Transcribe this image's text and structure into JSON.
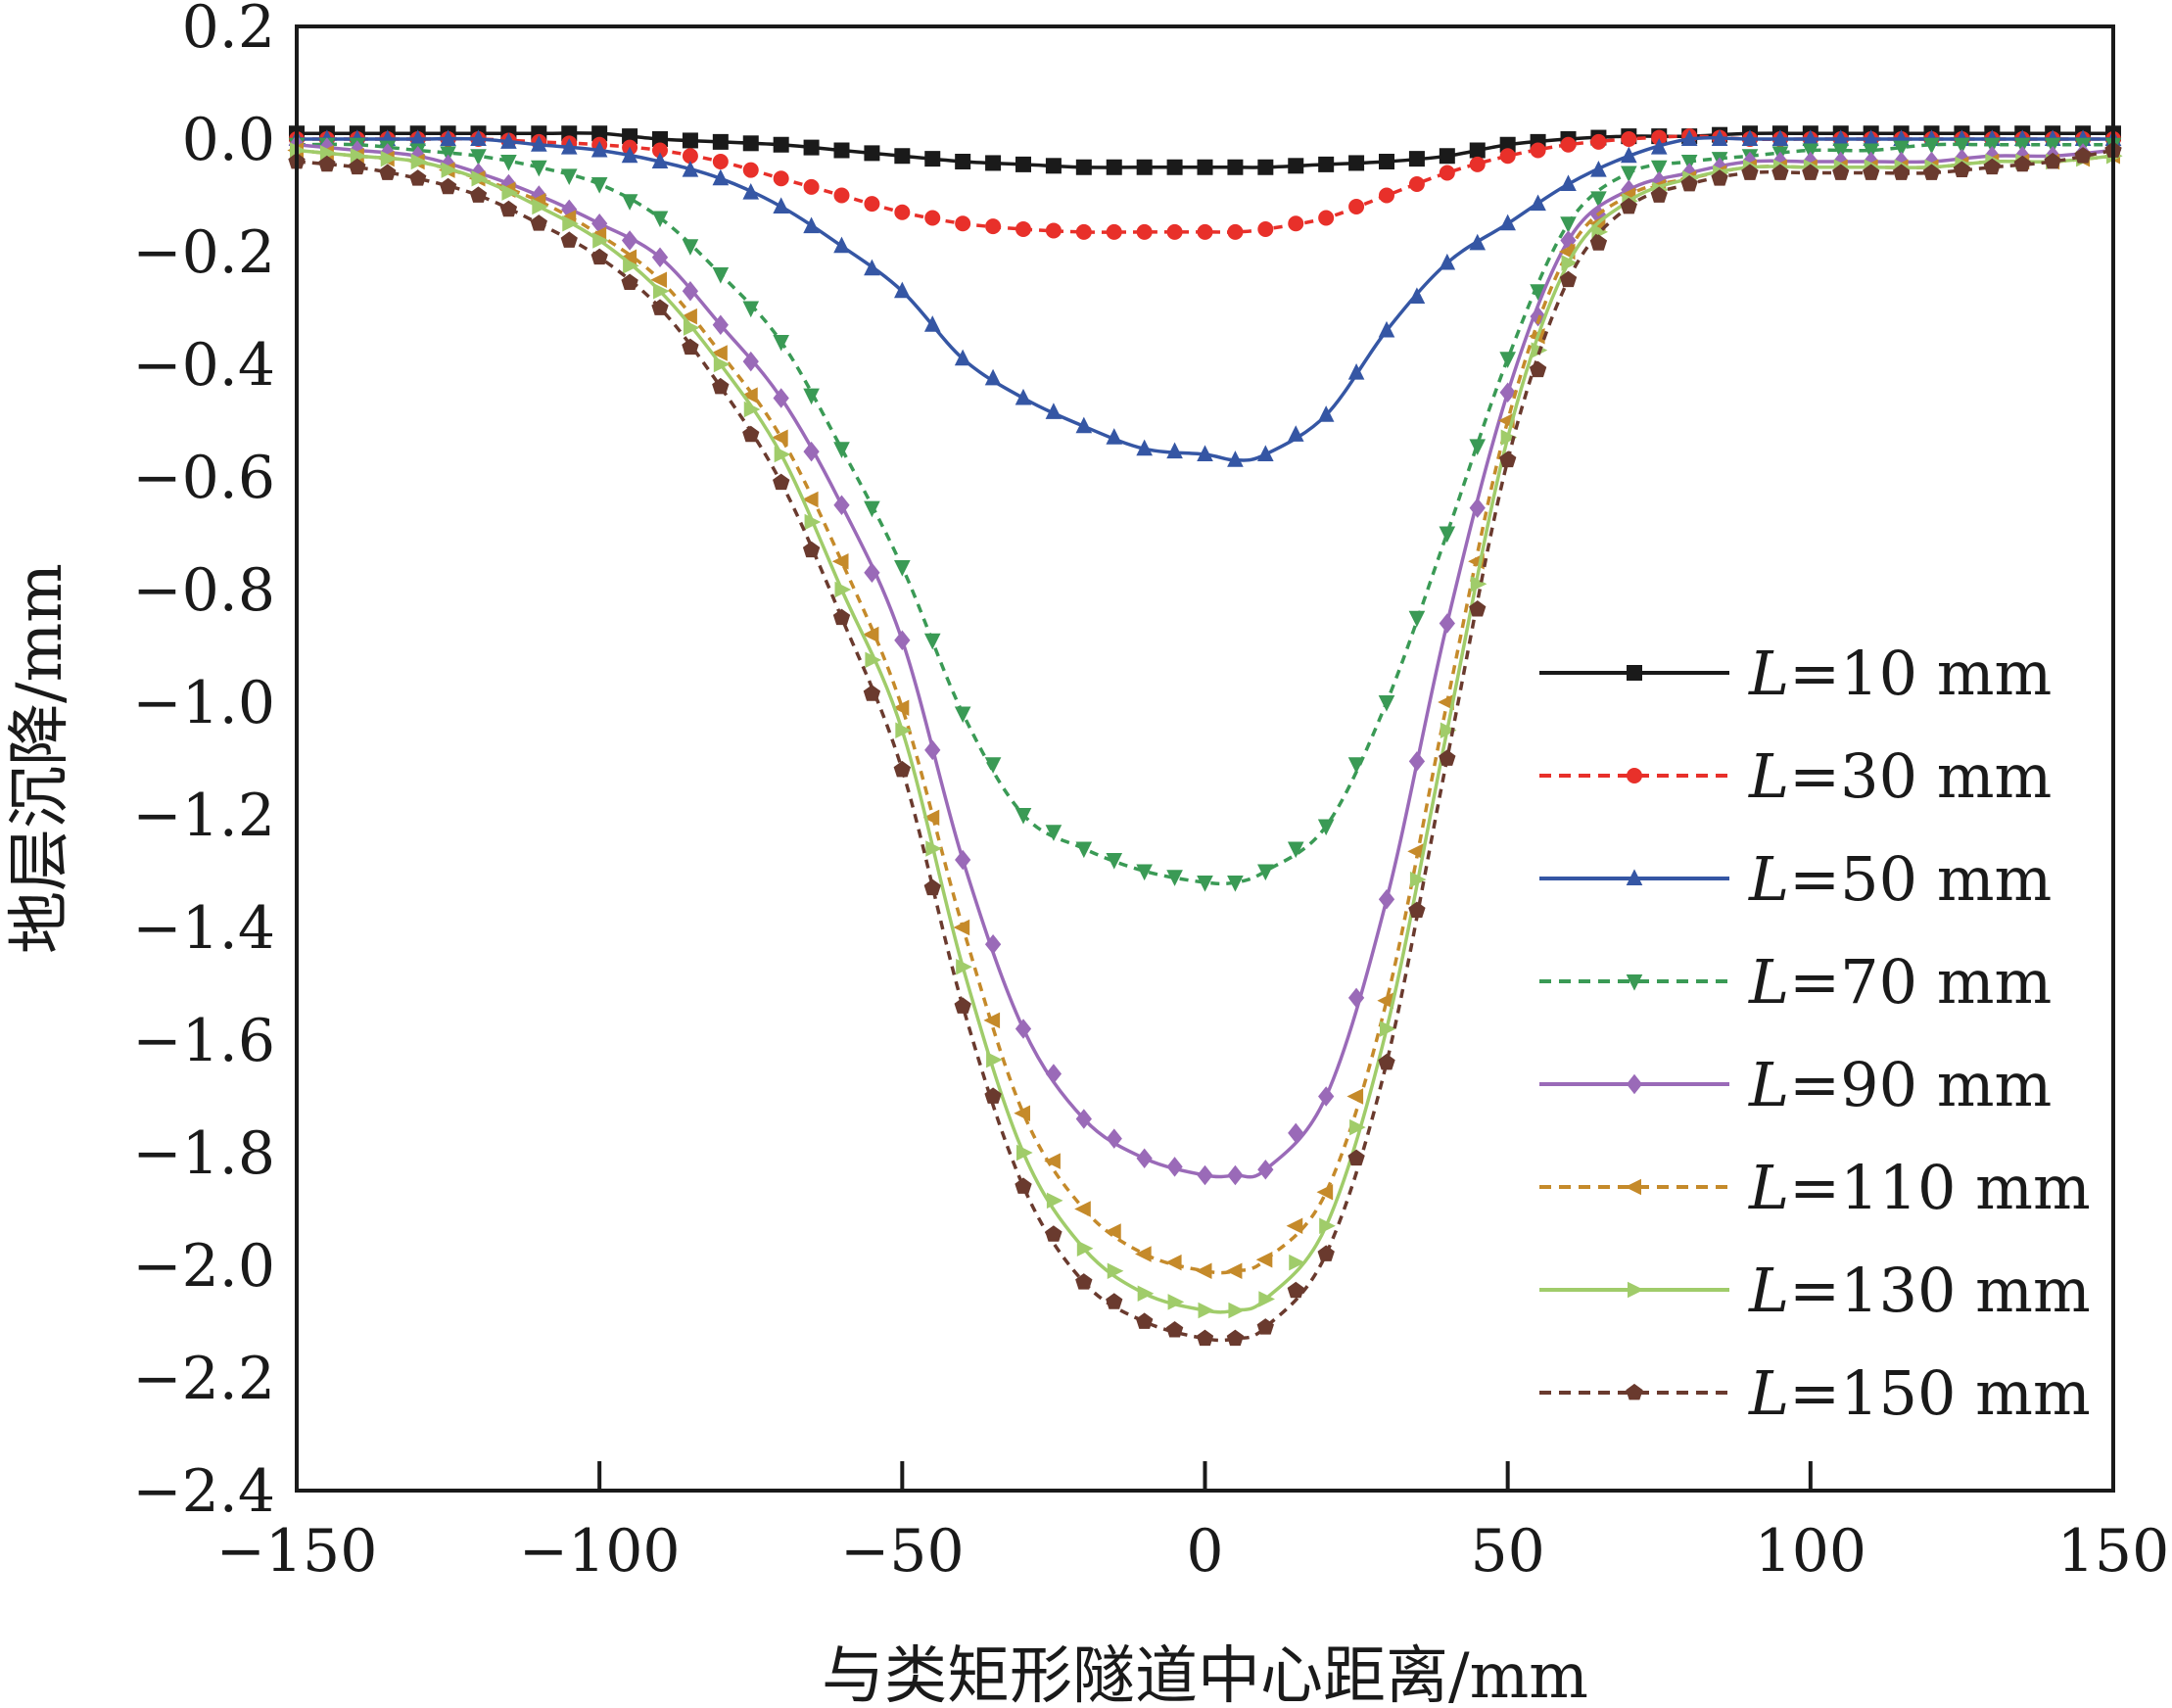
{
  "chart_data": {
    "type": "line",
    "title": "",
    "xlabel": "与类矩形隧道中心距离/mm",
    "ylabel": "地层沉降/mm",
    "xlim": [
      -150,
      150
    ],
    "ylim": [
      -2.4,
      0.2
    ],
    "xticks": [
      -150,
      -100,
      -50,
      0,
      50,
      100,
      150
    ],
    "xtick_labels": [
      "−150",
      "−100",
      "−50",
      "0",
      "50",
      "100",
      "150"
    ],
    "yticks": [
      0.2,
      0.0,
      -0.2,
      -0.4,
      -0.6,
      -0.8,
      -1.0,
      -1.2,
      -1.4,
      -1.6,
      -1.8,
      -2.0,
      -2.2,
      -2.4
    ],
    "ytick_labels": [
      "0.2",
      "0.0",
      "−0.2",
      "−0.4",
      "−0.6",
      "−0.8",
      "−1.0",
      "−1.2",
      "−1.4",
      "−1.6",
      "−1.8",
      "−2.0",
      "−2.2",
      "−2.4"
    ],
    "grid": false,
    "legend_position": "right",
    "x": [
      -150,
      -140,
      -130,
      -120,
      -110,
      -100,
      -90,
      -80,
      -70,
      -60,
      -50,
      -40,
      -30,
      -20,
      -10,
      0,
      5,
      10,
      20,
      30,
      40,
      50,
      60,
      70,
      80,
      90,
      100,
      110,
      120,
      130,
      140,
      150
    ],
    "series": [
      {
        "name": "L=10 mm",
        "name_var": "L",
        "name_rest": "=10 mm",
        "color": "#1a1a1a",
        "dash": "solid",
        "marker": "square",
        "values": [
          0.01,
          0.01,
          0.01,
          0.01,
          0.01,
          0.01,
          0.0,
          -0.005,
          -0.01,
          -0.02,
          -0.03,
          -0.04,
          -0.045,
          -0.05,
          -0.05,
          -0.05,
          -0.05,
          -0.05,
          -0.045,
          -0.04,
          -0.03,
          -0.01,
          0.0,
          0.005,
          0.005,
          0.01,
          0.01,
          0.01,
          0.01,
          0.01,
          0.01,
          0.01
        ]
      },
      {
        "name": "L=30 mm",
        "name_var": "L",
        "name_rest": "=30 mm",
        "color": "#e8302a",
        "dash": "dashed",
        "marker": "circle",
        "values": [
          0.0,
          0.0,
          0.0,
          0.0,
          -0.005,
          -0.01,
          -0.02,
          -0.04,
          -0.07,
          -0.1,
          -0.13,
          -0.15,
          -0.16,
          -0.165,
          -0.165,
          -0.165,
          -0.165,
          -0.16,
          -0.14,
          -0.1,
          -0.06,
          -0.03,
          -0.01,
          0.0,
          0.005,
          0.0,
          0.0,
          0.0,
          0.0,
          0.0,
          0.0,
          0.0
        ]
      },
      {
        "name": "L=50 mm",
        "name_var": "L",
        "name_rest": "=50 mm",
        "color": "#3556a4",
        "dash": "solid",
        "marker": "triangle-up",
        "values": [
          0.0,
          0.0,
          0.0,
          0.0,
          -0.01,
          -0.02,
          -0.04,
          -0.07,
          -0.12,
          -0.19,
          -0.27,
          -0.39,
          -0.46,
          -0.51,
          -0.55,
          -0.56,
          -0.57,
          -0.56,
          -0.49,
          -0.34,
          -0.22,
          -0.15,
          -0.08,
          -0.03,
          0.0,
          0.0,
          0.0,
          0.0,
          0.0,
          0.0,
          0.0,
          0.0
        ]
      },
      {
        "name": "L=70 mm",
        "name_var": "L",
        "name_rest": "=70 mm",
        "color": "#3a9a55",
        "dash": "dashed",
        "marker": "triangle-down",
        "values": [
          -0.01,
          -0.01,
          -0.02,
          -0.03,
          -0.05,
          -0.08,
          -0.14,
          -0.24,
          -0.36,
          -0.55,
          -0.76,
          -1.02,
          -1.2,
          -1.26,
          -1.3,
          -1.32,
          -1.32,
          -1.3,
          -1.22,
          -1.0,
          -0.7,
          -0.39,
          -0.15,
          -0.06,
          -0.04,
          -0.03,
          -0.02,
          -0.02,
          -0.01,
          -0.01,
          -0.01,
          -0.01
        ]
      },
      {
        "name": "L=90 mm",
        "name_var": "L",
        "name_rest": "=90 mm",
        "color": "#9a6ab8",
        "dash": "solid",
        "marker": "diamond",
        "values": [
          -0.01,
          -0.02,
          -0.03,
          -0.06,
          -0.1,
          -0.15,
          -0.21,
          -0.33,
          -0.46,
          -0.65,
          -0.89,
          -1.28,
          -1.58,
          -1.74,
          -1.81,
          -1.84,
          -1.84,
          -1.83,
          -1.7,
          -1.35,
          -0.86,
          -0.45,
          -0.18,
          -0.09,
          -0.06,
          -0.04,
          -0.04,
          -0.04,
          -0.04,
          -0.03,
          -0.03,
          -0.02
        ]
      },
      {
        "name": "L=110 mm",
        "name_var": "L",
        "name_rest": "=110 mm",
        "color": "#c58a2a",
        "dash": "dashed",
        "marker": "triangle-left",
        "values": [
          -0.02,
          -0.03,
          -0.04,
          -0.07,
          -0.11,
          -0.17,
          -0.25,
          -0.38,
          -0.53,
          -0.75,
          -1.01,
          -1.4,
          -1.73,
          -1.9,
          -1.98,
          -2.01,
          -2.01,
          -1.99,
          -1.87,
          -1.53,
          -1.0,
          -0.5,
          -0.2,
          -0.1,
          -0.07,
          -0.05,
          -0.05,
          -0.05,
          -0.05,
          -0.04,
          -0.04,
          -0.03
        ]
      },
      {
        "name": "L=130 mm",
        "name_var": "L",
        "name_rest": "=130 mm",
        "color": "#a0cc6a",
        "dash": "solid",
        "marker": "triangle-right",
        "values": [
          -0.02,
          -0.03,
          -0.04,
          -0.07,
          -0.12,
          -0.18,
          -0.27,
          -0.4,
          -0.56,
          -0.8,
          -1.05,
          -1.47,
          -1.8,
          -1.97,
          -2.05,
          -2.08,
          -2.08,
          -2.06,
          -1.93,
          -1.58,
          -1.05,
          -0.53,
          -0.22,
          -0.11,
          -0.07,
          -0.05,
          -0.05,
          -0.05,
          -0.05,
          -0.04,
          -0.04,
          -0.03
        ]
      },
      {
        "name": "L=150 mm",
        "name_var": "L",
        "name_rest": "=150 mm",
        "color": "#6a3a2e",
        "dash": "dashed",
        "marker": "pentagon",
        "values": [
          -0.04,
          -0.05,
          -0.07,
          -0.1,
          -0.15,
          -0.21,
          -0.3,
          -0.44,
          -0.61,
          -0.85,
          -1.12,
          -1.54,
          -1.86,
          -2.03,
          -2.1,
          -2.13,
          -2.13,
          -2.11,
          -1.98,
          -1.64,
          -1.1,
          -0.57,
          -0.25,
          -0.12,
          -0.08,
          -0.06,
          -0.06,
          -0.06,
          -0.06,
          -0.05,
          -0.04,
          -0.02
        ]
      }
    ]
  }
}
